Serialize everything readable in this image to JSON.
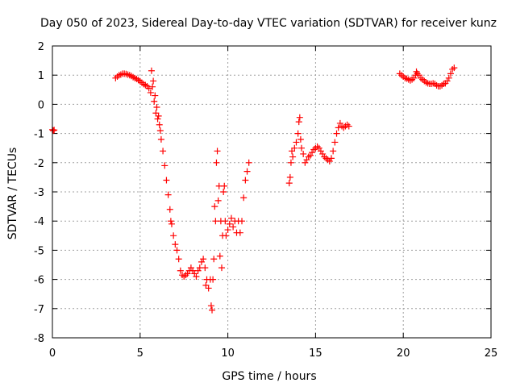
{
  "chart_data": {
    "type": "scatter",
    "title": "Day 050 of 2023, Sidereal Day-to-day VTEC variation (SDTVAR) for receiver kunz",
    "xlabel": "GPS time / hours",
    "ylabel": "SDTVAR / TECUs",
    "xlim": [
      0,
      25
    ],
    "ylim": [
      -8,
      2
    ],
    "xticks": [
      "0",
      "5",
      "10",
      "15",
      "20",
      "25"
    ],
    "yticks": [
      "-8",
      "-7",
      "-6",
      "-5",
      "-4",
      "-3",
      "-2",
      "-1",
      "0",
      "1",
      "2"
    ],
    "grid": true,
    "legend": "none",
    "marker": "plus",
    "color": "#ff0000",
    "series": [
      {
        "segments": [
          [
            [
              0.0,
              -0.87
            ],
            [
              0.05,
              -0.9
            ],
            [
              0.1,
              -0.88
            ]
          ],
          [
            [
              3.6,
              0.9
            ],
            [
              3.7,
              0.95
            ],
            [
              3.8,
              1.0
            ],
            [
              3.9,
              1.02
            ],
            [
              4.0,
              1.05
            ],
            [
              4.1,
              1.05
            ],
            [
              4.2,
              1.04
            ],
            [
              4.3,
              1.02
            ],
            [
              4.4,
              1.0
            ],
            [
              4.5,
              0.97
            ],
            [
              4.6,
              0.93
            ],
            [
              4.7,
              0.9
            ],
            [
              4.8,
              0.87
            ],
            [
              4.9,
              0.83
            ],
            [
              5.0,
              0.79
            ],
            [
              5.1,
              0.74
            ],
            [
              5.2,
              0.69
            ],
            [
              5.3,
              0.66
            ],
            [
              5.4,
              0.62
            ],
            [
              5.5,
              0.55
            ],
            [
              5.6,
              0.4
            ],
            [
              5.65,
              1.15
            ],
            [
              5.7,
              0.6
            ],
            [
              5.75,
              0.8
            ],
            [
              5.8,
              0.1
            ],
            [
              5.85,
              0.3
            ],
            [
              5.9,
              -0.3
            ],
            [
              5.95,
              -0.1
            ],
            [
              6.0,
              -0.5
            ],
            [
              6.05,
              -0.4
            ],
            [
              6.1,
              -0.7
            ],
            [
              6.15,
              -0.9
            ],
            [
              6.2,
              -1.2
            ],
            [
              6.3,
              -1.6
            ],
            [
              6.4,
              -2.1
            ],
            [
              6.5,
              -2.6
            ],
            [
              6.6,
              -3.1
            ],
            [
              6.7,
              -3.6
            ],
            [
              6.75,
              -4.0
            ],
            [
              6.8,
              -4.1
            ],
            [
              6.9,
              -4.5
            ],
            [
              7.0,
              -4.8
            ],
            [
              7.1,
              -5.0
            ],
            [
              7.2,
              -5.3
            ],
            [
              7.3,
              -5.7
            ],
            [
              7.4,
              -5.85
            ],
            [
              7.5,
              -5.9
            ],
            [
              7.6,
              -5.85
            ],
            [
              7.7,
              -5.8
            ],
            [
              7.8,
              -5.7
            ],
            [
              7.9,
              -5.6
            ],
            [
              8.0,
              -5.7
            ],
            [
              8.1,
              -5.8
            ],
            [
              8.2,
              -5.9
            ],
            [
              8.3,
              -5.7
            ],
            [
              8.4,
              -5.6
            ],
            [
              8.5,
              -5.4
            ],
            [
              8.6,
              -5.3
            ],
            [
              8.7,
              -5.6
            ],
            [
              8.75,
              -6.2
            ],
            [
              8.8,
              -6.0
            ],
            [
              8.9,
              -6.3
            ],
            [
              9.0,
              -6.0
            ],
            [
              9.05,
              -6.9
            ],
            [
              9.1,
              -7.05
            ],
            [
              9.15,
              -6.0
            ],
            [
              9.2,
              -5.3
            ],
            [
              9.25,
              -3.5
            ],
            [
              9.3,
              -4.0
            ],
            [
              9.35,
              -2.0
            ],
            [
              9.4,
              -1.6
            ],
            [
              9.45,
              -3.3
            ],
            [
              9.5,
              -2.8
            ],
            [
              9.55,
              -5.2
            ],
            [
              9.6,
              -4.0
            ],
            [
              9.65,
              -5.6
            ],
            [
              9.7,
              -4.5
            ],
            [
              9.75,
              -3.0
            ],
            [
              9.8,
              -2.8
            ],
            [
              9.85,
              -4.0
            ],
            [
              9.9,
              -4.5
            ],
            [
              10.0,
              -4.3
            ],
            [
              10.1,
              -4.1
            ],
            [
              10.2,
              -3.9
            ],
            [
              10.3,
              -4.2
            ],
            [
              10.4,
              -4.0
            ],
            [
              10.5,
              -4.4
            ],
            [
              10.6,
              -4.0
            ],
            [
              10.7,
              -4.4
            ],
            [
              10.8,
              -4.0
            ],
            [
              10.9,
              -3.2
            ],
            [
              11.0,
              -2.6
            ],
            [
              11.1,
              -2.3
            ],
            [
              11.2,
              -2.0
            ]
          ],
          [
            [
              13.5,
              -2.7
            ],
            [
              13.55,
              -2.5
            ],
            [
              13.6,
              -2.0
            ],
            [
              13.65,
              -1.6
            ],
            [
              13.7,
              -1.8
            ],
            [
              13.8,
              -1.5
            ],
            [
              13.9,
              -1.3
            ],
            [
              14.0,
              -1.0
            ],
            [
              14.05,
              -0.6
            ],
            [
              14.1,
              -0.45
            ],
            [
              14.15,
              -1.2
            ],
            [
              14.2,
              -1.5
            ],
            [
              14.3,
              -1.7
            ],
            [
              14.4,
              -2.0
            ],
            [
              14.5,
              -1.9
            ],
            [
              14.6,
              -1.8
            ],
            [
              14.7,
              -1.75
            ],
            [
              14.8,
              -1.65
            ],
            [
              14.9,
              -1.55
            ],
            [
              15.0,
              -1.5
            ],
            [
              15.1,
              -1.45
            ],
            [
              15.2,
              -1.5
            ],
            [
              15.3,
              -1.6
            ],
            [
              15.4,
              -1.7
            ],
            [
              15.5,
              -1.8
            ],
            [
              15.6,
              -1.85
            ],
            [
              15.7,
              -1.9
            ],
            [
              15.8,
              -1.95
            ],
            [
              15.9,
              -1.85
            ],
            [
              16.0,
              -1.6
            ],
            [
              16.1,
              -1.3
            ],
            [
              16.2,
              -1.0
            ],
            [
              16.3,
              -0.8
            ],
            [
              16.4,
              -0.65
            ],
            [
              16.5,
              -0.75
            ],
            [
              16.6,
              -0.8
            ],
            [
              16.7,
              -0.75
            ],
            [
              16.8,
              -0.7
            ],
            [
              16.9,
              -0.75
            ]
          ],
          [
            [
              19.8,
              1.05
            ],
            [
              19.9,
              1.0
            ],
            [
              20.0,
              0.95
            ],
            [
              20.1,
              0.9
            ],
            [
              20.2,
              0.88
            ],
            [
              20.3,
              0.85
            ],
            [
              20.4,
              0.82
            ],
            [
              20.5,
              0.85
            ],
            [
              20.6,
              0.9
            ],
            [
              20.7,
              1.0
            ],
            [
              20.75,
              1.12
            ],
            [
              20.8,
              1.05
            ],
            [
              20.9,
              1.0
            ],
            [
              21.0,
              0.9
            ],
            [
              21.1,
              0.85
            ],
            [
              21.2,
              0.8
            ],
            [
              21.3,
              0.75
            ],
            [
              21.4,
              0.72
            ],
            [
              21.5,
              0.7
            ],
            [
              21.6,
              0.7
            ],
            [
              21.7,
              0.72
            ],
            [
              21.8,
              0.7
            ],
            [
              21.9,
              0.65
            ],
            [
              22.0,
              0.62
            ],
            [
              22.1,
              0.62
            ],
            [
              22.2,
              0.65
            ],
            [
              22.3,
              0.7
            ],
            [
              22.4,
              0.72
            ],
            [
              22.5,
              0.8
            ],
            [
              22.6,
              0.9
            ],
            [
              22.7,
              1.05
            ],
            [
              22.8,
              1.2
            ],
            [
              22.9,
              1.25
            ]
          ]
        ]
      }
    ]
  }
}
